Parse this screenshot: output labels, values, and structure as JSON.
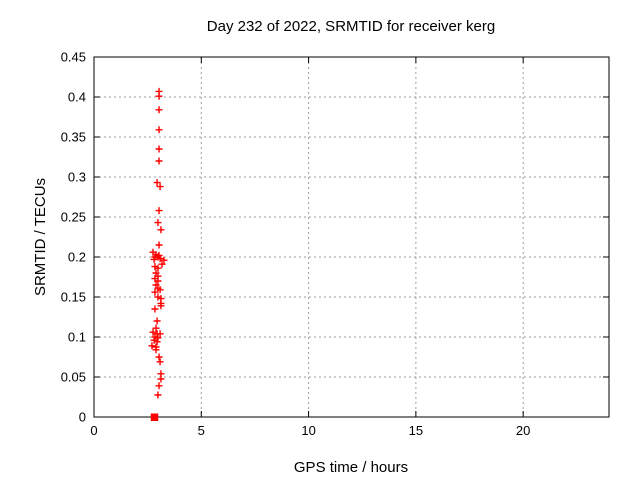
{
  "chart_data": {
    "type": "scatter",
    "title": "Day 232 of 2022, SRMTID for receiver kerg",
    "xlabel": "GPS time / hours",
    "ylabel": "SRMTID / TECUs",
    "xlim": [
      0,
      24
    ],
    "ylim": [
      0,
      0.45
    ],
    "grid": true,
    "legend": "none",
    "point_color": "#ff0000",
    "marker": "plus",
    "xticks": {
      "values": [
        0,
        5,
        10,
        15,
        20
      ],
      "labels": [
        "0",
        "5",
        "10",
        "15",
        "20"
      ]
    },
    "yticks": {
      "values": [
        0,
        0.05,
        0.1,
        0.15,
        0.2,
        0.25,
        0.3,
        0.35,
        0.4,
        0.45
      ],
      "labels": [
        "0",
        "0.05",
        "0.1",
        "0.15",
        "0.2",
        "0.25",
        "0.3",
        "0.35",
        "0.4",
        "0.45"
      ]
    },
    "series": [
      {
        "name": "SRMTID",
        "points": [
          [
            3.03,
            0.407
          ],
          [
            3.03,
            0.401
          ],
          [
            3.03,
            0.384
          ],
          [
            3.03,
            0.359
          ],
          [
            3.03,
            0.335
          ],
          [
            3.03,
            0.32
          ],
          [
            2.94,
            0.293
          ],
          [
            3.08,
            0.288
          ],
          [
            3.03,
            0.258
          ],
          [
            2.98,
            0.243
          ],
          [
            3.12,
            0.234
          ],
          [
            3.03,
            0.215
          ],
          [
            2.75,
            0.206
          ],
          [
            2.89,
            0.203
          ],
          [
            3.03,
            0.202
          ],
          [
            2.84,
            0.2
          ],
          [
            2.98,
            0.2
          ],
          [
            3.08,
            0.198
          ],
          [
            2.8,
            0.197
          ],
          [
            3.26,
            0.196
          ],
          [
            3.17,
            0.191
          ],
          [
            2.84,
            0.188
          ],
          [
            2.98,
            0.186
          ],
          [
            2.89,
            0.18
          ],
          [
            2.98,
            0.176
          ],
          [
            2.84,
            0.173
          ],
          [
            2.98,
            0.17
          ],
          [
            2.89,
            0.165
          ],
          [
            2.98,
            0.161
          ],
          [
            3.08,
            0.159
          ],
          [
            2.84,
            0.156
          ],
          [
            2.98,
            0.15
          ],
          [
            3.12,
            0.148
          ],
          [
            3.12,
            0.142
          ],
          [
            3.12,
            0.139
          ],
          [
            2.84,
            0.135
          ],
          [
            2.94,
            0.12
          ],
          [
            2.89,
            0.111
          ],
          [
            2.75,
            0.106
          ],
          [
            2.94,
            0.104
          ],
          [
            3.08,
            0.104
          ],
          [
            2.84,
            0.1
          ],
          [
            2.98,
            0.099
          ],
          [
            2.8,
            0.096
          ],
          [
            2.94,
            0.094
          ],
          [
            2.7,
            0.089
          ],
          [
            2.89,
            0.0875
          ],
          [
            2.89,
            0.084
          ],
          [
            3.03,
            0.075
          ],
          [
            3.08,
            0.069
          ],
          [
            3.12,
            0.054
          ],
          [
            3.12,
            0.0475
          ],
          [
            3.03,
            0.039
          ],
          [
            2.98,
            0.0275
          ]
        ]
      }
    ],
    "zero_cluster": {
      "x": 2.82,
      "y": 0,
      "marker": "filled-square"
    }
  }
}
